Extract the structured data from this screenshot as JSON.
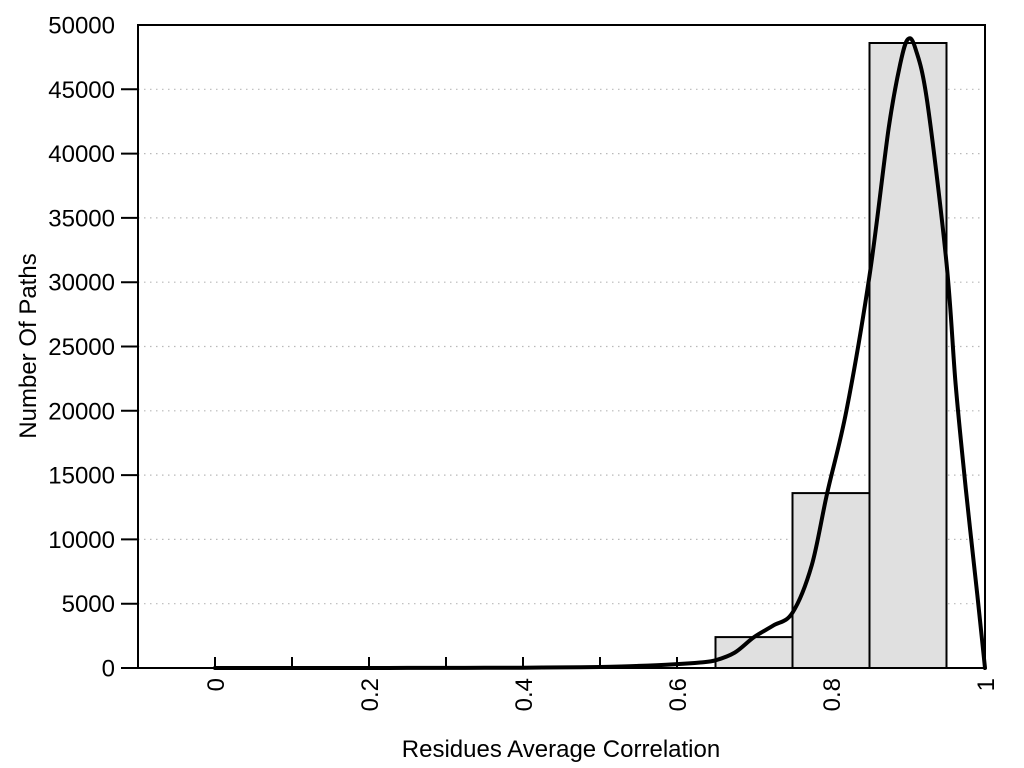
{
  "chart_data": {
    "type": "bar",
    "subtype": "histogram-with-fit-curve",
    "title": "",
    "xlabel": "Residues Average Correlation",
    "ylabel": "Number Of Paths",
    "xlim": [
      -0.1,
      1.0
    ],
    "ylim": [
      0,
      50000
    ],
    "grid": "horizontal-dotted",
    "legend": "none",
    "x_ticks": {
      "labeled_values": [
        0,
        0.2,
        0.4,
        0.6,
        0.8,
        1
      ],
      "labels": [
        "0",
        "0.2",
        "0.4",
        "0.6",
        "0.8",
        "1"
      ],
      "minor_step": 0.1,
      "label_rotation_deg": -90,
      "direction": "inside"
    },
    "y_ticks": {
      "labeled_values": [
        0,
        5000,
        10000,
        15000,
        20000,
        25000,
        30000,
        35000,
        40000,
        45000,
        50000
      ],
      "labels": [
        "0",
        "5000",
        "10000",
        "15000",
        "20000",
        "25000",
        "30000",
        "35000",
        "40000",
        "45000",
        "50000"
      ],
      "tick_mark_values": [
        0,
        5000,
        10000,
        15000,
        20000,
        25000,
        30000,
        35000,
        40000,
        45000
      ],
      "direction": "outside"
    },
    "histogram": {
      "bin_width": 0.1,
      "bins": [
        {
          "x0": 0.65,
          "x1": 0.75,
          "count": 2400
        },
        {
          "x0": 0.75,
          "x1": 0.85,
          "count": 13600
        },
        {
          "x0": 0.85,
          "x1": 0.95,
          "count": 48600
        }
      ]
    },
    "fit_curve": {
      "name": "fit-curve",
      "peak": {
        "x": 0.9,
        "value": 48900
      },
      "points": [
        [
          0.0,
          0
        ],
        [
          0.05,
          0
        ],
        [
          0.1,
          0
        ],
        [
          0.15,
          0
        ],
        [
          0.2,
          0
        ],
        [
          0.25,
          5
        ],
        [
          0.3,
          10
        ],
        [
          0.35,
          15
        ],
        [
          0.4,
          25
        ],
        [
          0.45,
          45
        ],
        [
          0.5,
          80
        ],
        [
          0.55,
          160
        ],
        [
          0.6,
          300
        ],
        [
          0.63,
          430
        ],
        [
          0.65,
          600
        ],
        [
          0.675,
          1200
        ],
        [
          0.7,
          2400
        ],
        [
          0.725,
          3300
        ],
        [
          0.75,
          4300
        ],
        [
          0.775,
          8000
        ],
        [
          0.795,
          13600
        ],
        [
          0.82,
          20000
        ],
        [
          0.85,
          30500
        ],
        [
          0.875,
          42000
        ],
        [
          0.89,
          47000
        ],
        [
          0.9,
          48900
        ],
        [
          0.91,
          48100
        ],
        [
          0.925,
          44000
        ],
        [
          0.95,
          31500
        ],
        [
          0.962,
          22000
        ],
        [
          0.975,
          14000
        ],
        [
          0.99,
          5700
        ],
        [
          1.0,
          0
        ]
      ]
    },
    "colors": {
      "background": "#ffffff",
      "border": "#000000",
      "bar_fill": "#e0e0e0",
      "bar_stroke": "#000000",
      "curve": "#000000",
      "grid": "#b9b9b9",
      "text": "#000000"
    }
  }
}
